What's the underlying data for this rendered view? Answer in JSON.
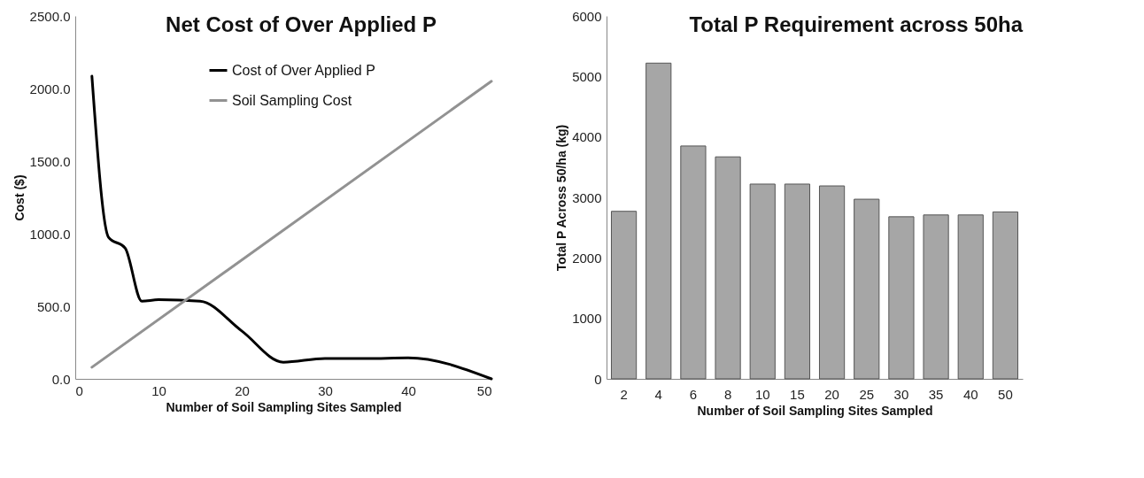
{
  "chart_data": [
    {
      "type": "line",
      "title": "Net Cost of Over Applied P",
      "xlabel": "Number of Soil Sampling Sites Sampled",
      "ylabel": "Cost ($)",
      "series": [
        {
          "name": "Cost of Over Applied P",
          "color": "#000000",
          "x": [
            2,
            4,
            6,
            8,
            10,
            15,
            20,
            25,
            30,
            35,
            40,
            50
          ],
          "values": [
            2085,
            975,
            900,
            535,
            545,
            535,
            330,
            115,
            140,
            140,
            145,
            0
          ]
        },
        {
          "name": "Soil Sampling Cost",
          "color": "#929292",
          "x": [
            2,
            50
          ],
          "values": [
            80,
            2050
          ]
        }
      ],
      "xlim": [
        0,
        50
      ],
      "xticks": [
        0,
        10,
        20,
        30,
        40,
        50
      ],
      "ylim": [
        0,
        2500
      ],
      "yticks": [
        {
          "value": 0,
          "label": "0.0"
        },
        {
          "value": 500,
          "label": "500.0"
        },
        {
          "value": 1000,
          "label": "1000.0"
        },
        {
          "value": 1500,
          "label": "1500.0"
        },
        {
          "value": 2000,
          "label": "2000.0"
        },
        {
          "value": 2500,
          "label": "2500.0"
        }
      ],
      "legend": "top right"
    },
    {
      "type": "bar",
      "title": "Total P Requirement across 50ha",
      "xlabel": "Number of Soil Sampling Sites Sampled",
      "ylabel": "Total P Across 50/ha (kg)",
      "categories": [
        "2",
        "4",
        "6",
        "8",
        "10",
        "15",
        "20",
        "25",
        "30",
        "35",
        "40",
        "50"
      ],
      "values": [
        2770,
        5220,
        3850,
        3670,
        3220,
        3220,
        3190,
        2970,
        2680,
        2710,
        2710,
        2760
      ],
      "color": "#a6a6a6",
      "ylim": [
        0,
        6000
      ],
      "yticks": [
        0,
        1000,
        2000,
        3000,
        4000,
        5000,
        6000
      ]
    }
  ]
}
